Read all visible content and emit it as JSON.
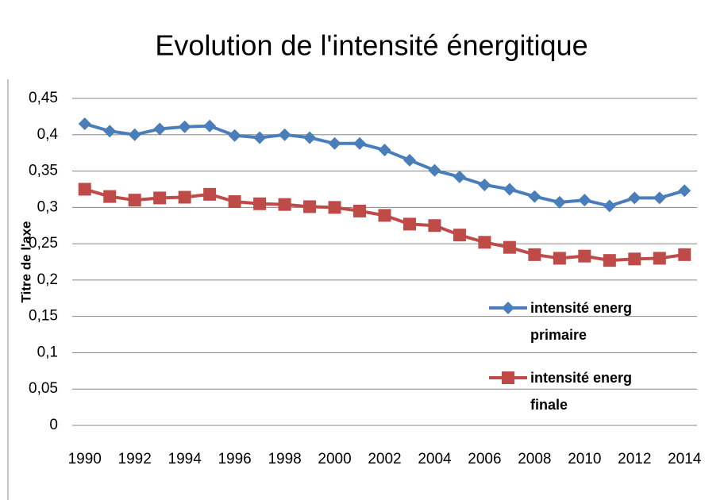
{
  "chart_data": {
    "type": "line",
    "title": "Evolution de l'intensité énergitique",
    "y_label": "Titre de l'axe",
    "categories": [
      "1990",
      null,
      "1992",
      null,
      "1994",
      null,
      "1996",
      null,
      "1998",
      null,
      "2000",
      null,
      "2002",
      null,
      "2004",
      null,
      "2006",
      null,
      "2008",
      null,
      "2010",
      null,
      "2012",
      null,
      "2014"
    ],
    "series": [
      {
        "name": "intensité energ primaire",
        "color": "#4a7ebb",
        "marker": "diamond",
        "values": [
          0.415,
          0.405,
          0.4,
          0.408,
          0.411,
          0.412,
          0.399,
          0.396,
          0.4,
          0.396,
          0.388,
          0.388,
          0.379,
          0.365,
          0.351,
          0.342,
          0.331,
          0.325,
          0.315,
          0.307,
          0.31,
          0.302,
          0.313,
          0.313,
          0.323
        ]
      },
      {
        "name": "intensité energ finale",
        "color": "#be4b48",
        "marker": "square",
        "values": [
          0.325,
          0.315,
          0.31,
          0.313,
          0.314,
          0.318,
          0.308,
          0.305,
          0.304,
          0.301,
          0.3,
          0.295,
          0.289,
          0.277,
          0.275,
          0.262,
          0.252,
          0.245,
          0.235,
          0.23,
          0.233,
          0.227,
          0.229,
          0.23,
          0.235
        ]
      }
    ],
    "ylim": [
      0,
      0.45
    ],
    "yticks": [
      {
        "value": 0,
        "label": "0"
      },
      {
        "value": 0.05,
        "label": "0,05"
      },
      {
        "value": 0.1,
        "label": "0,1"
      },
      {
        "value": 0.15,
        "label": "0,15"
      },
      {
        "value": 0.2,
        "label": "0,2"
      },
      {
        "value": 0.25,
        "label": "0,25"
      },
      {
        "value": 0.3,
        "label": "0,3"
      },
      {
        "value": 0.35,
        "label": "0,35"
      },
      {
        "value": 0.4,
        "label": "0,4"
      },
      {
        "value": 0.45,
        "label": "0,45"
      }
    ],
    "grid": true,
    "legend": "right"
  }
}
